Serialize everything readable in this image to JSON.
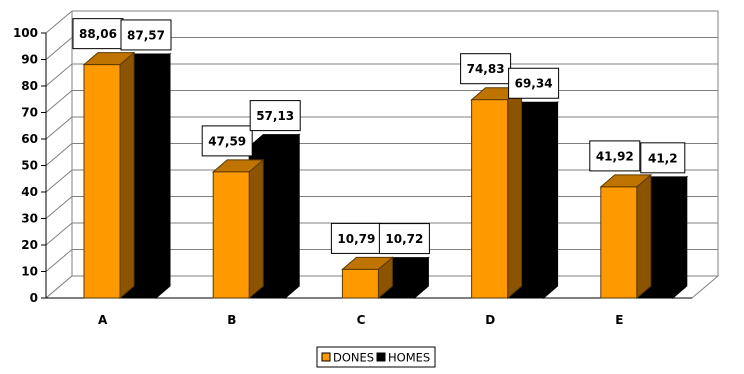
{
  "chart_data": {
    "type": "bar",
    "subtype": "3d-clustered-column",
    "categories": [
      "A",
      "B",
      "C",
      "D",
      "E"
    ],
    "series": [
      {
        "name": "DONES",
        "values": [
          88.06,
          47.59,
          10.79,
          74.83,
          41.92
        ],
        "labels": [
          "88,06",
          "47,59",
          "10,79",
          "74,83",
          "41,92"
        ],
        "color": "#FF9900"
      },
      {
        "name": "HOMES",
        "values": [
          87.57,
          57.13,
          10.72,
          69.34,
          41.2
        ],
        "labels": [
          "87,57",
          "57,13",
          "10,72",
          "69,34",
          "41,2"
        ],
        "color": "#000000"
      }
    ],
    "ylim": [
      0,
      100
    ],
    "yticks": [
      0,
      10,
      20,
      30,
      40,
      50,
      60,
      70,
      80,
      90,
      100
    ],
    "ytick_labels": [
      "0",
      "10",
      "20",
      "30",
      "40",
      "50",
      "60",
      "70",
      "80",
      "90",
      "100"
    ],
    "title": "",
    "xlabel": "",
    "ylabel": "",
    "grid": true,
    "legend": "bottom"
  }
}
